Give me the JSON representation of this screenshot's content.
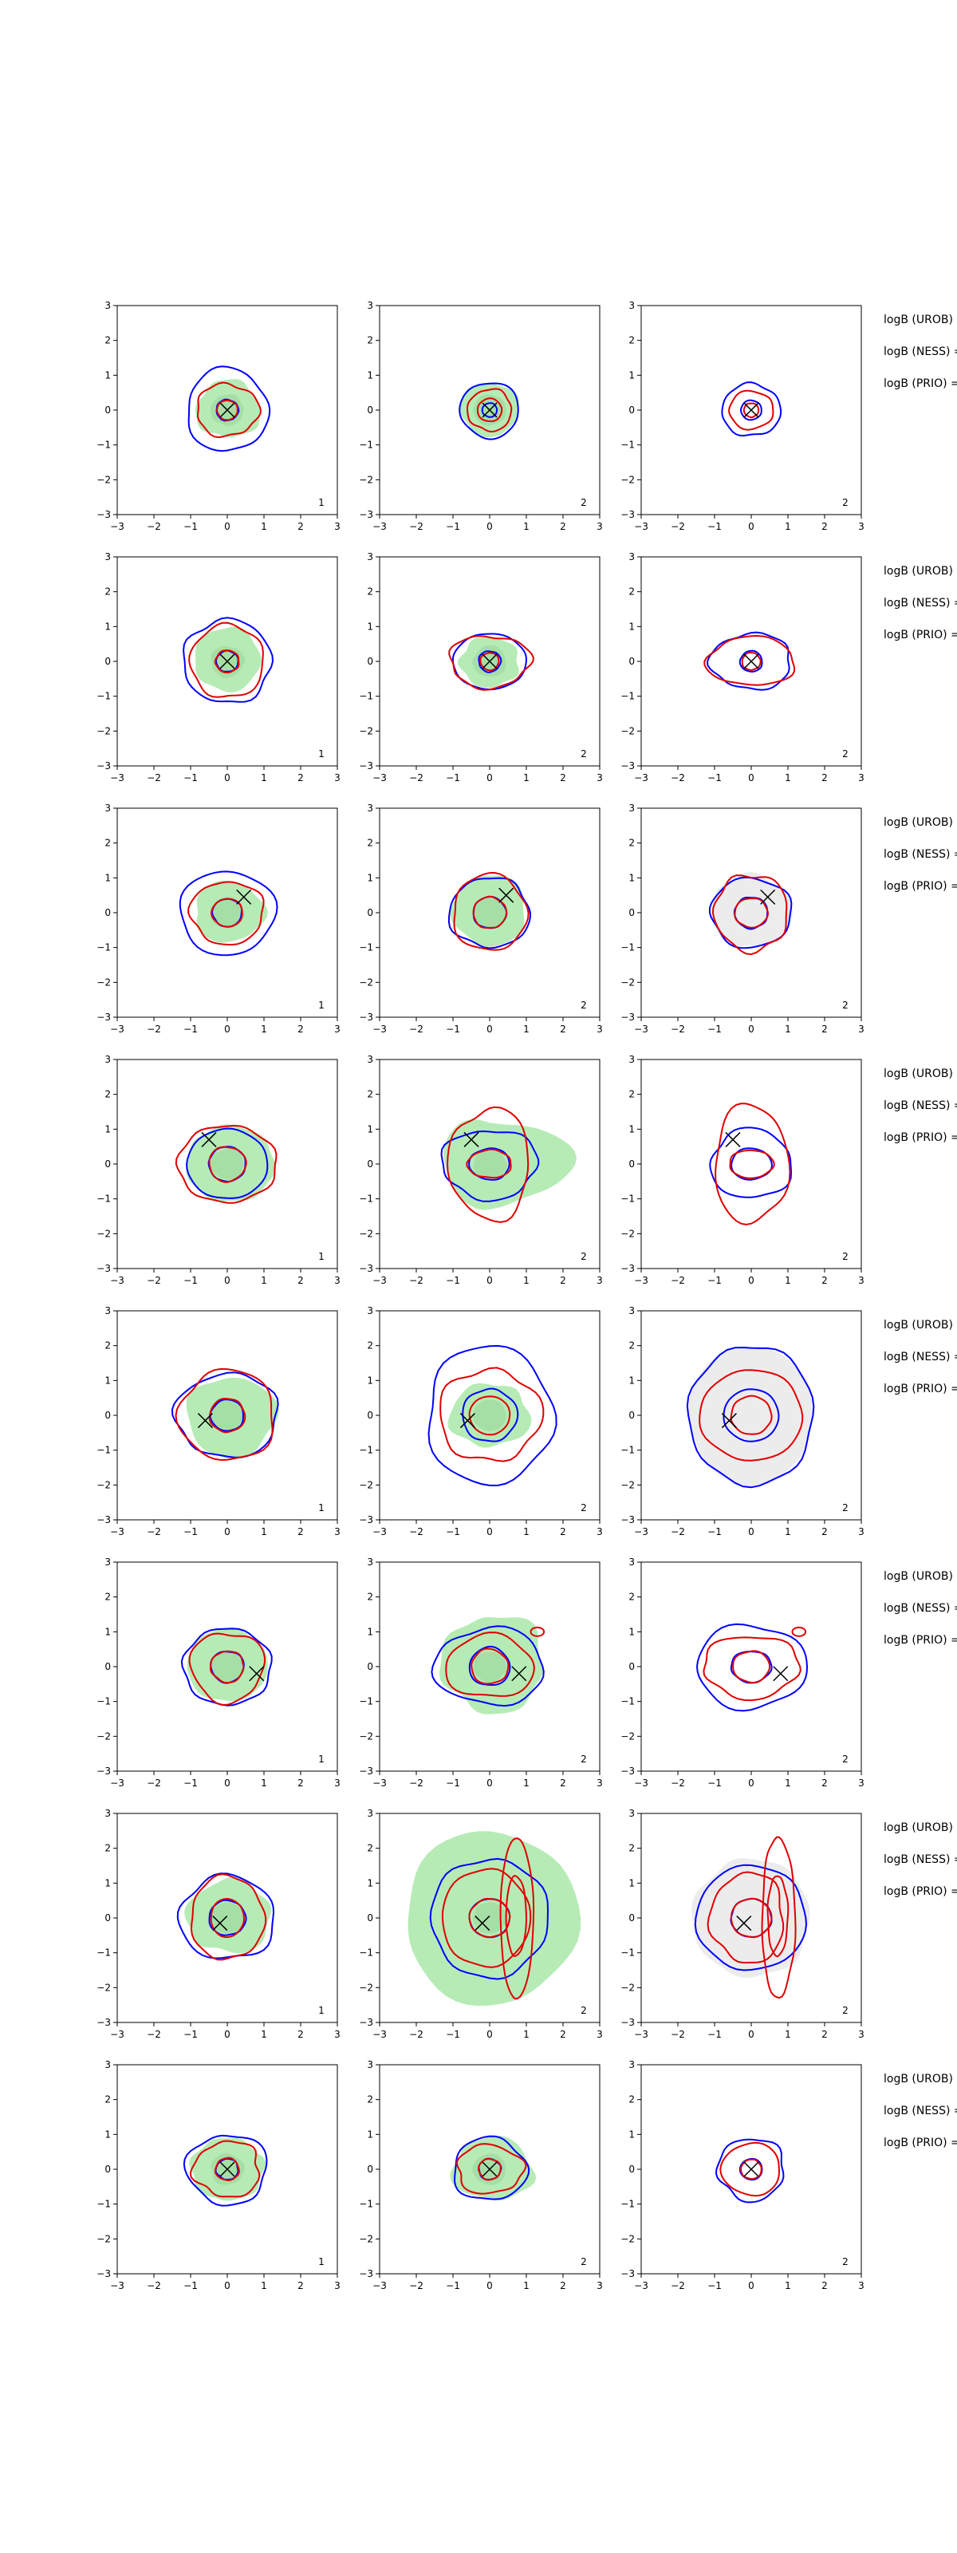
{
  "figure": {
    "colors": {
      "posterior_fill": "#b6ebb6",
      "prior_fill": "#dcdcdc",
      "blue": "#0000ff",
      "red": "#e00000",
      "marker": "#000000"
    }
  },
  "chart_data": {
    "type": "contour-grid",
    "rows": 8,
    "cols": 3,
    "xlim": [
      -3,
      3
    ],
    "ylim": [
      -3,
      3
    ],
    "ticks": [
      "−3",
      "−2",
      "−1",
      "0",
      "1",
      "2",
      "3"
    ],
    "tick_values": [
      -3,
      -2,
      -1,
      0,
      1,
      2,
      3
    ],
    "column_fill": [
      "posterior",
      "posterior",
      "prior"
    ],
    "column_corner_labels": [
      "1",
      "2",
      "2"
    ],
    "side_labels": [
      "logB (UROB) =",
      "logB (NESS) =",
      "logB (PRIO) ="
    ],
    "panels": [
      {
        "marker": [
          0,
          0
        ],
        "fill": [
          0.9,
          0.85,
          0.85,
          0.8
        ],
        "blue_in": [
          0.3,
          0.3
        ],
        "blue_out": [
          1.1,
          1.2
        ],
        "red_in": [
          0.28,
          0.28
        ],
        "red_out": [
          0.85,
          0.75
        ],
        "fill_seed": 1,
        "blue_seed": 2,
        "red_seed": 3
      },
      {
        "marker": [
          0,
          0
        ],
        "fill": [
          0.8,
          0.8,
          0.8,
          0.75
        ],
        "blue_in": [
          0.2,
          0.2
        ],
        "blue_out": [
          0.8,
          0.8
        ],
        "red_in": [
          0.33,
          0.33
        ],
        "red_out": [
          0.6,
          0.6
        ],
        "fill_seed": 4,
        "blue_seed": 5,
        "red_seed": 6
      },
      {
        "marker": [
          0,
          0
        ],
        "fill": null,
        "blue_in": [
          0.28,
          0.28
        ],
        "blue_out": [
          0.8,
          0.75
        ],
        "red_in": [
          0.2,
          0.2
        ],
        "red_out": [
          0.6,
          0.55
        ],
        "fill_seed": 7,
        "blue_seed": 8,
        "red_seed": 9
      },
      {
        "marker": [
          0,
          0
        ],
        "fill": [
          0.9,
          1.0,
          0.9,
          0.85
        ],
        "blue_in": [
          0.3,
          0.3
        ],
        "blue_out": [
          1.2,
          1.2
        ],
        "red_in": [
          0.32,
          0.32
        ],
        "red_out": [
          1.0,
          1.05
        ],
        "fill_seed": 11,
        "blue_seed": 12,
        "red_seed": 13
      },
      {
        "marker": [
          0,
          0
        ],
        "fill": [
          0.8,
          0.7,
          0.8,
          0.75
        ],
        "blue_in": [
          0.3,
          0.3
        ],
        "blue_out": [
          1.0,
          0.8
        ],
        "red_in": [
          0.25,
          0.25
        ],
        "red_out": [
          1.1,
          0.75
        ],
        "fill_seed": 14,
        "blue_seed": 15,
        "red_seed": 16
      },
      {
        "marker": [
          0,
          0
        ],
        "fill": null,
        "blue_in": [
          0.3,
          0.3
        ],
        "blue_out": [
          1.1,
          0.8
        ],
        "red_in": [
          0.25,
          0.25
        ],
        "red_out": [
          1.2,
          0.7
        ],
        "fill_seed": 17,
        "blue_seed": 18,
        "red_seed": 19
      },
      {
        "marker": [
          0.45,
          0.45
        ],
        "fill": [
          1.0,
          0.9,
          0.9,
          0.85
        ],
        "blue_in": [
          0.4,
          0.4
        ],
        "blue_out": [
          1.3,
          1.2
        ],
        "red_in": [
          0.42,
          0.4
        ],
        "red_out": [
          1.0,
          0.9
        ],
        "fill_seed": 21,
        "blue_seed": 22,
        "red_seed": 23
      },
      {
        "marker": [
          0.45,
          0.5
        ],
        "fill": [
          1.0,
          1.1,
          1.0,
          0.95
        ],
        "blue_in": [
          0.45,
          0.45
        ],
        "blue_out": [
          1.1,
          1.0
        ],
        "red_in": [
          0.45,
          0.45
        ],
        "red_out": [
          1.0,
          1.1
        ],
        "fill_seed": 24,
        "blue_seed": 25,
        "red_seed": 26
      },
      {
        "marker": [
          0.45,
          0.45
        ],
        "fill": null,
        "gray": [
          1.1,
          1.1,
          1.1,
          1.0
        ],
        "blue_in": [
          0.45,
          0.45
        ],
        "blue_out": [
          1.1,
          1.0
        ],
        "red_in": [
          0.45,
          0.42
        ],
        "red_out": [
          1.0,
          1.1
        ],
        "fill_seed": 27,
        "blue_seed": 28,
        "red_seed": 29
      },
      {
        "marker": [
          -0.5,
          0.7
        ],
        "fill": [
          1.3,
          1.1,
          1.1,
          1.1
        ],
        "blue_in": [
          0.5,
          0.5
        ],
        "blue_out": [
          1.1,
          1.0
        ],
        "red_in": [
          0.5,
          0.5
        ],
        "red_out": [
          1.35,
          1.1
        ],
        "fill_seed": 31,
        "blue_seed": 32,
        "red_seed": 33
      },
      {
        "marker": [
          -0.5,
          0.7
        ],
        "fill": [
          2.2,
          1.3,
          1.3,
          1.2
        ],
        "blue_in": [
          0.55,
          0.45
        ],
        "blue_out": [
          1.3,
          1.0
        ],
        "red_in": [
          0.6,
          0.4
        ],
        "red_out": [
          1.1,
          1.6
        ],
        "fill_seed": 34,
        "blue_seed": 35,
        "red_seed": 36
      },
      {
        "marker": [
          -0.5,
          0.7
        ],
        "fill": null,
        "blue_in": [
          0.55,
          0.45
        ],
        "blue_out": [
          1.1,
          1.0
        ],
        "red_in": [
          0.6,
          0.4
        ],
        "red_out": [
          1.0,
          1.7
        ],
        "fill_seed": 37,
        "blue_seed": 38,
        "red_seed": 39
      },
      {
        "marker": [
          -0.6,
          -0.15
        ],
        "fill": [
          1.35,
          1.1,
          1.1,
          1.2
        ],
        "blue_in": [
          0.45,
          0.45
        ],
        "blue_out": [
          1.4,
          1.2
        ],
        "red_in": [
          0.48,
          0.48
        ],
        "red_out": [
          1.3,
          1.3
        ],
        "fill_seed": 41,
        "blue_seed": 42,
        "red_seed": 43
      },
      {
        "marker": [
          -0.6,
          -0.15
        ],
        "fill": [
          1.1,
          0.9,
          1.1,
          0.9
        ],
        "blue_in": [
          0.75,
          0.75
        ],
        "blue_out": [
          1.7,
          2.0
        ],
        "red_in": [
          0.55,
          0.55
        ],
        "red_out": [
          1.4,
          1.3
        ],
        "fill_seed": 44,
        "blue_seed": 45,
        "red_seed": 46
      },
      {
        "marker": [
          -0.6,
          -0.15
        ],
        "fill": null,
        "gray": [
          1.7,
          2.0,
          1.7,
          2.0
        ],
        "blue_in": [
          0.75,
          0.75
        ],
        "blue_out": [
          1.7,
          2.0
        ],
        "red_in": [
          0.55,
          0.55
        ],
        "red_out": [
          1.4,
          1.3
        ],
        "fill_seed": 47,
        "blue_seed": 48,
        "red_seed": 49
      },
      {
        "marker": [
          0.8,
          -0.2
        ],
        "fill": [
          1.1,
          1.1,
          1.1,
          1.0
        ],
        "blue_in": [
          0.45,
          0.45
        ],
        "blue_out": [
          1.2,
          1.1
        ],
        "red_in": [
          0.45,
          0.45
        ],
        "red_out": [
          1.0,
          1.0
        ],
        "fill_seed": 51,
        "blue_seed": 52,
        "red_seed": 53
      },
      {
        "marker": [
          0.8,
          -0.2
        ],
        "fill": [
          1.5,
          1.5,
          1.3,
          1.3
        ],
        "blue_in": [
          0.55,
          0.55
        ],
        "blue_out": [
          1.5,
          1.1
        ],
        "red_in": [
          0.5,
          0.5
        ],
        "red_out": [
          1.2,
          0.9
        ],
        "fill_seed": 54,
        "blue_seed": 55,
        "red_seed": 56,
        "red_blob": [
          1.3,
          1.0,
          0.18
        ]
      },
      {
        "marker": [
          0.8,
          -0.2
        ],
        "fill": null,
        "blue_in": [
          0.55,
          0.45
        ],
        "blue_out": [
          1.5,
          1.2
        ],
        "red_in": [
          0.5,
          0.45
        ],
        "red_out": [
          1.3,
          0.9
        ],
        "fill_seed": 57,
        "blue_seed": 58,
        "red_seed": 59,
        "red_blob": [
          1.3,
          1.0,
          0.18
        ]
      },
      {
        "marker": [
          -0.2,
          -0.15
        ],
        "fill": [
          1.2,
          1.1,
          1.1,
          1.0
        ],
        "blue_in": [
          0.5,
          0.5
        ],
        "blue_out": [
          1.3,
          1.2
        ],
        "red_in": [
          0.45,
          0.55
        ],
        "red_out": [
          1.0,
          1.2
        ],
        "fill_seed": 61,
        "blue_seed": 62,
        "red_seed": 63
      },
      {
        "marker": [
          -0.2,
          -0.15
        ],
        "fill": [
          2.4,
          2.5,
          2.3,
          2.5
        ],
        "blue_in": [
          0.55,
          0.55
        ],
        "blue_out": [
          1.6,
          1.7
        ],
        "red_in": [
          0.55,
          0.55
        ],
        "red_out": [
          1.2,
          1.4
        ],
        "fill_seed": 64,
        "blue_seed": 65,
        "red_seed": 66,
        "red_tall": true
      },
      {
        "marker": [
          -0.2,
          -0.15
        ],
        "fill": null,
        "gray": [
          1.6,
          1.7,
          1.6,
          1.7
        ],
        "blue_in": [
          0.55,
          0.55
        ],
        "blue_out": [
          1.5,
          1.5
        ],
        "red_in": [
          0.55,
          0.55
        ],
        "red_out": [
          1.0,
          1.3
        ],
        "fill_seed": 67,
        "blue_seed": 68,
        "red_seed": 69,
        "red_tall": true
      },
      {
        "marker": [
          0,
          0
        ],
        "fill": [
          1.0,
          0.9,
          1.0,
          0.9
        ],
        "blue_in": [
          0.3,
          0.3
        ],
        "blue_out": [
          1.1,
          1.0
        ],
        "red_in": [
          0.32,
          0.32
        ],
        "red_out": [
          0.9,
          0.8
        ],
        "fill_seed": 71,
        "blue_seed": 72,
        "red_seed": 73
      },
      {
        "marker": [
          0,
          0
        ],
        "fill": [
          1.2,
          0.9,
          1.0,
          0.9
        ],
        "blue_in": [
          0.3,
          0.3
        ],
        "blue_out": [
          1.0,
          0.9
        ],
        "red_in": [
          0.3,
          0.3
        ],
        "red_out": [
          0.9,
          0.7
        ],
        "fill_seed": 74,
        "blue_seed": 75,
        "red_seed": 76
      },
      {
        "marker": [
          0,
          0
        ],
        "fill": null,
        "blue_in": [
          0.3,
          0.3
        ],
        "blue_out": [
          0.9,
          0.9
        ],
        "red_in": [
          0.28,
          0.28
        ],
        "red_out": [
          0.8,
          0.75
        ],
        "fill_seed": 77,
        "blue_seed": 78,
        "red_seed": 79
      }
    ]
  }
}
